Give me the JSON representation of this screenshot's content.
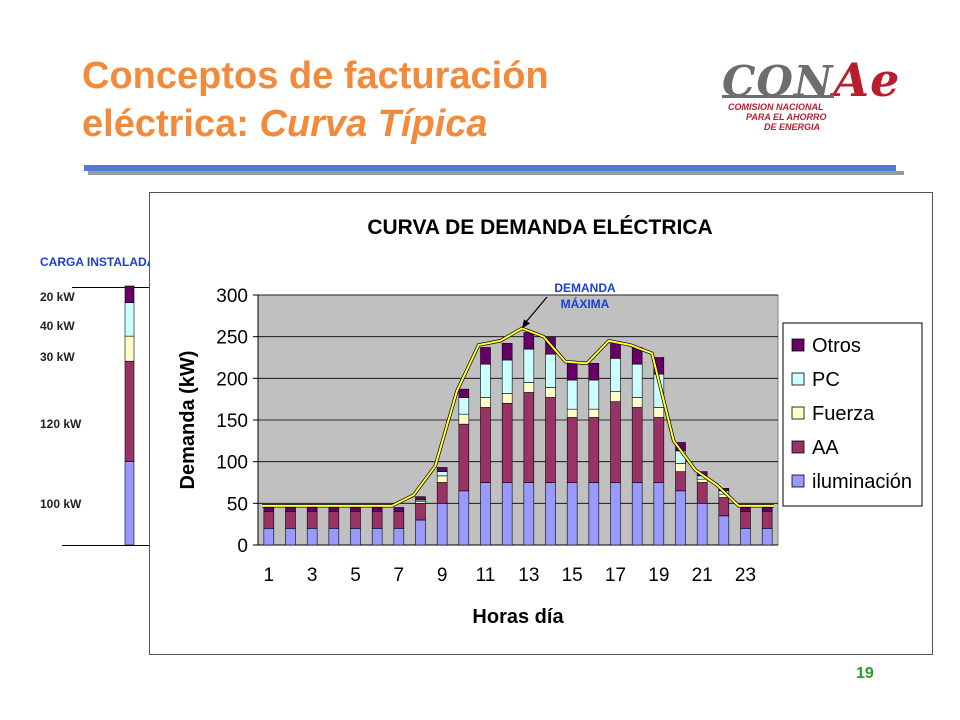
{
  "slide": {
    "title_line1": "Conceptos de facturación",
    "title_line2_main": "eléctrica: ",
    "title_line2_italic": "Curva Típica",
    "page_number": "19",
    "colors": {
      "title": "#f28a3c",
      "rule_blue": "#4d7bd8",
      "rule_gray": "#9a9a9a"
    }
  },
  "logo": {
    "word_part1": "CON",
    "word_part2": "Ae",
    "tagline": [
      "COMISION NACIONAL",
      "PARA EL AHORRO",
      "DE ENERGIA"
    ]
  },
  "carga_instalada": {
    "title": "CARGA INSTALADA",
    "segments": [
      {
        "label": "100 kW",
        "value": 100,
        "series": "iluminación"
      },
      {
        "label": "120 kW",
        "value": 120,
        "series": "AA"
      },
      {
        "label": "30 kW",
        "value": 30,
        "series": "Fuerza"
      },
      {
        "label": "40 kW",
        "value": 40,
        "series": "PC"
      },
      {
        "label": "20 kW",
        "value": 20,
        "series": "Otros"
      }
    ]
  },
  "annotation": {
    "line1": "DEMANDA",
    "line2": "MÁXIMA"
  },
  "chart_data": {
    "type": "bar",
    "stacked": true,
    "title": "CURVA DE DEMANDA ELÉCTRICA",
    "xlabel": "Horas día",
    "ylabel": "Demanda (kW)",
    "ylim": [
      0,
      300
    ],
    "yticks": [
      0,
      50,
      100,
      150,
      200,
      250,
      300
    ],
    "xtick_labels": [
      "1",
      "3",
      "5",
      "7",
      "9",
      "11",
      "13",
      "15",
      "17",
      "19",
      "21",
      "23"
    ],
    "categories": [
      1,
      2,
      3,
      4,
      5,
      6,
      7,
      8,
      9,
      10,
      11,
      12,
      13,
      14,
      15,
      16,
      17,
      18,
      19,
      20,
      21,
      22,
      23,
      24
    ],
    "grid": true,
    "legend_position": "right",
    "series": [
      {
        "name": "iluminación",
        "color": "#9999ff",
        "values": [
          20,
          20,
          20,
          20,
          20,
          20,
          20,
          30,
          50,
          65,
          75,
          75,
          75,
          75,
          75,
          75,
          75,
          75,
          75,
          65,
          50,
          35,
          20,
          20
        ]
      },
      {
        "name": "AA",
        "color": "#993366",
        "values": [
          20,
          20,
          20,
          20,
          20,
          20,
          20,
          20,
          25,
          80,
          90,
          95,
          108,
          102,
          78,
          78,
          97,
          90,
          78,
          23,
          25,
          22,
          20,
          20
        ]
      },
      {
        "name": "Fuerza",
        "color": "#ffffcc",
        "values": [
          0,
          0,
          0,
          0,
          0,
          0,
          0,
          2,
          8,
          12,
          12,
          12,
          12,
          12,
          10,
          10,
          12,
          12,
          12,
          10,
          4,
          4,
          0,
          0
        ]
      },
      {
        "name": "PC",
        "color": "#ccffff",
        "values": [
          0,
          0,
          0,
          0,
          0,
          0,
          0,
          2,
          5,
          20,
          40,
          40,
          40,
          40,
          35,
          35,
          40,
          40,
          40,
          15,
          4,
          4,
          0,
          0
        ]
      },
      {
        "name": "Otros",
        "color": "#660066",
        "values": [
          5,
          5,
          5,
          5,
          5,
          5,
          5,
          4,
          5,
          10,
          20,
          20,
          20,
          20,
          20,
          20,
          20,
          20,
          20,
          10,
          5,
          3,
          5,
          5
        ]
      }
    ],
    "total_line": {
      "color": "#ffff33",
      "values": [
        47,
        47,
        47,
        47,
        47,
        47,
        47,
        60,
        95,
        185,
        240,
        245,
        260,
        250,
        220,
        218,
        245,
        240,
        230,
        125,
        90,
        72,
        47,
        47
      ]
    }
  }
}
